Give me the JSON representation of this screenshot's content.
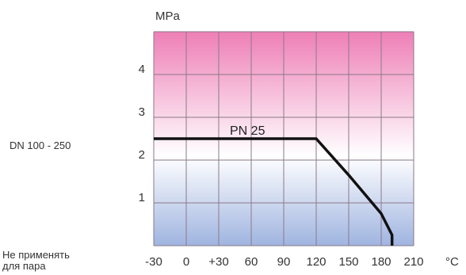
{
  "side_label": "DN 100 - 250",
  "note_line1": "Не применять",
  "note_line2": "для пара",
  "colors": {
    "top": "#ee7fb6",
    "middle": "#ffffff",
    "bottom": "#9fb4e0",
    "grid": "#8a7a8a",
    "line": "#111111"
  },
  "chart_data": {
    "type": "line",
    "xlabel": "°C",
    "ylabel": "MPa",
    "x_ticks": [
      "-30",
      "0",
      "+30",
      "60",
      "90",
      "120",
      "150",
      "180",
      "210"
    ],
    "y_ticks": [
      "1",
      "2",
      "3",
      "4"
    ],
    "xlim": [
      -30,
      210
    ],
    "ylim": [
      0,
      5
    ],
    "grid": true,
    "series": [
      {
        "name": "PN 25",
        "x": [
          -30,
          120,
          150,
          180,
          190
        ],
        "y": [
          2.5,
          2.5,
          1.65,
          0.75,
          0.25
        ]
      }
    ],
    "series_drop": {
      "x": 190,
      "y_from": 0.25,
      "y_to": 0
    }
  }
}
